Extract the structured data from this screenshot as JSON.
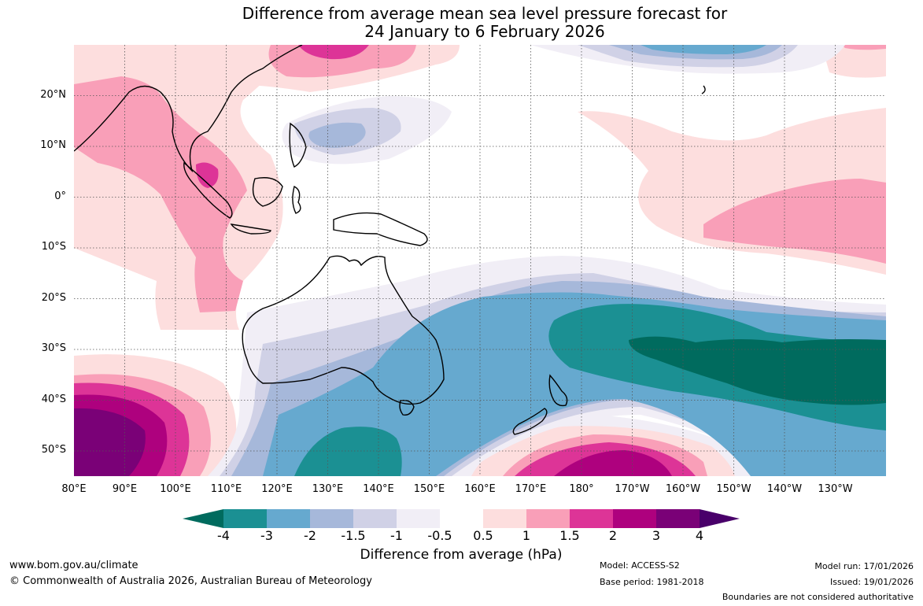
{
  "title": {
    "line1": "Difference from average mean sea level pressure forecast for",
    "line2": "24 January to 6 February 2026"
  },
  "axes": {
    "latitude_labels": [
      "20°N",
      "10°N",
      "0°",
      "10°S",
      "20°S",
      "30°S",
      "40°S",
      "50°S"
    ],
    "longitude_labels": [
      "80°E",
      "90°E",
      "100°E",
      "110°E",
      "120°E",
      "130°E",
      "140°E",
      "150°E",
      "160°E",
      "170°E",
      "180°",
      "170°W",
      "160°W",
      "150°W",
      "140°W",
      "130°W"
    ]
  },
  "colorbar": {
    "label": "Difference from average (hPa)",
    "ticks": [
      "-4",
      "-3",
      "-2",
      "-1.5",
      "-1",
      "-0.5",
      "0.5",
      "1",
      "1.5",
      "2",
      "3",
      "4"
    ],
    "colors": {
      "lt_-4": "#006b5e",
      "-4_-3": "#1b9093",
      "-3_-2": "#66a9cf",
      "-2_-1.5": "#a6b8da",
      "-1.5_-1": "#d0d1e6",
      "-1_-0.5": "#f1eef6",
      "-0.5_0.5": "#ffffff",
      "0.5_1": "#fddede",
      "1_1.5": "#f99fb8",
      "1.5_2": "#dd3497",
      "2_3": "#ae017e",
      "3_4": "#7a0177",
      "gt_4": "#49006a"
    }
  },
  "footer": {
    "site": "www.bom.gov.au/climate",
    "copyright": "© Commonwealth of Australia 2026, Australian Bureau of Meteorology",
    "model": "Model: ACCESS-S2",
    "base_period": "Base period: 1981-2018",
    "model_run": "Model run: 17/01/2026",
    "issued": "Issued: 19/01/2026",
    "boundaries": "Boundaries are not considered authoritative"
  }
}
